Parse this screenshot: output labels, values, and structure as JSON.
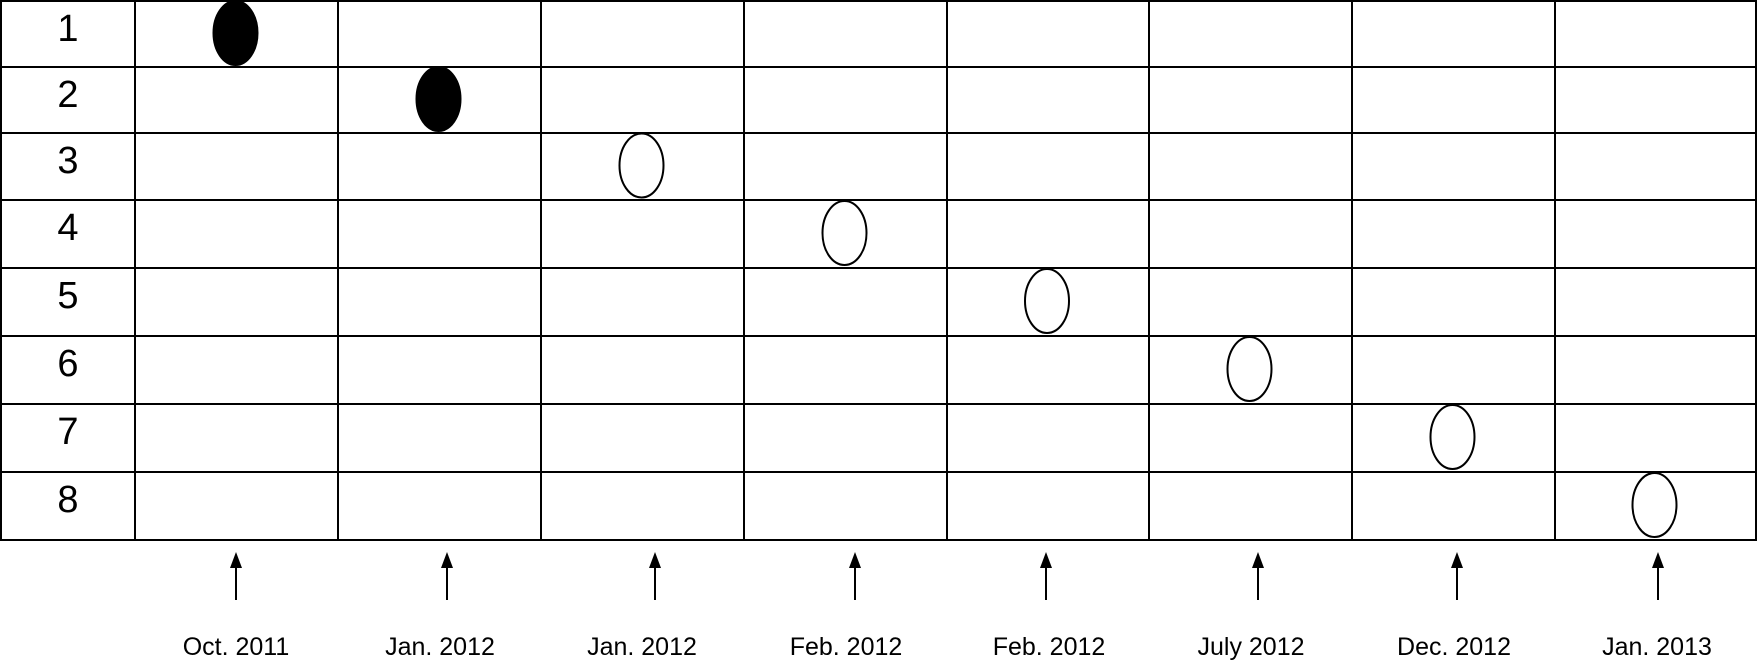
{
  "rows": [
    "1",
    "2",
    "3",
    "4",
    "5",
    "6",
    "7",
    "8"
  ],
  "dates": [
    "Oct. 2011",
    "Jan. 2012",
    "Jan. 2012",
    "Feb. 2012",
    "Feb. 2012",
    "July 2012",
    "Dec. 2012",
    "Jan. 2013"
  ],
  "markers": [
    {
      "row": 1,
      "column": 1,
      "style": "filled"
    },
    {
      "row": 2,
      "column": 2,
      "style": "filled"
    },
    {
      "row": 3,
      "column": 3,
      "style": "open"
    },
    {
      "row": 4,
      "column": 4,
      "style": "open"
    },
    {
      "row": 5,
      "column": 5,
      "style": "open"
    },
    {
      "row": 6,
      "column": 6,
      "style": "open"
    },
    {
      "row": 7,
      "column": 7,
      "style": "open"
    },
    {
      "row": 8,
      "column": 8,
      "style": "open"
    }
  ],
  "colors": {
    "line": "#000000",
    "filled_marker": "#000000",
    "open_marker": "#ffffff"
  }
}
